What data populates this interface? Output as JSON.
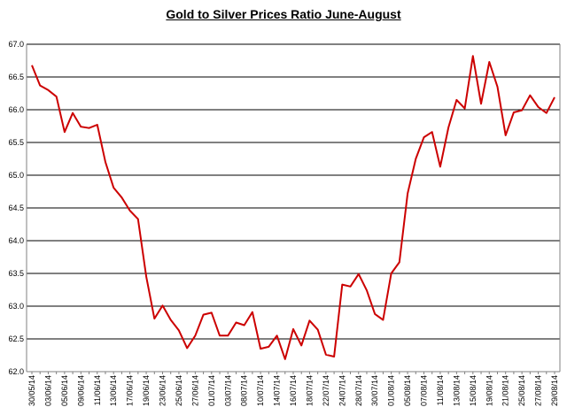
{
  "chart_data": {
    "type": "line",
    "title": "Gold to Silver Prices Ratio June-August",
    "xlabel": "",
    "ylabel": "",
    "ylim": [
      62.0,
      67.0
    ],
    "y_ticks": [
      "62.0",
      "62.5",
      "63.0",
      "63.5",
      "64.0",
      "64.5",
      "65.0",
      "65.5",
      "66.0",
      "66.5",
      "67.0"
    ],
    "grid": true,
    "legend": "none",
    "colors": {
      "line": "#cc0000",
      "grid": "#000000",
      "axis": "#808080"
    },
    "x_tick_labels": [
      "30/05/14",
      "03/06/14",
      "05/06/14",
      "09/06/14",
      "11/06/14",
      "13/06/14",
      "17/06/14",
      "19/06/14",
      "23/06/14",
      "25/06/14",
      "27/06/14",
      "01/07/14",
      "03/07/14",
      "08/07/14",
      "10/07/14",
      "14/07/14",
      "16/07/14",
      "18/07/14",
      "22/07/14",
      "24/07/14",
      "28/07/14",
      "30/07/14",
      "01/08/14",
      "05/08/14",
      "07/08/14",
      "11/08/14",
      "13/08/14",
      "15/08/14",
      "19/08/14",
      "21/08/14",
      "25/08/14",
      "27/08/14",
      "29/08/14"
    ],
    "series": [
      {
        "values": [
          66.68,
          66.37,
          66.3,
          66.2,
          65.66,
          65.95,
          65.74,
          65.72,
          65.77,
          65.2,
          64.81,
          64.66,
          64.46,
          64.33,
          63.45,
          62.81,
          63.01,
          62.79,
          62.63,
          62.36,
          62.55,
          62.87,
          62.9,
          62.55,
          62.55,
          62.75,
          62.71,
          62.91,
          62.35,
          62.38,
          62.55,
          62.19,
          62.65,
          62.4,
          62.78,
          62.64,
          62.26,
          62.23,
          63.33,
          63.3,
          63.49,
          63.24,
          62.88,
          62.79,
          63.5,
          63.67,
          64.72,
          65.25,
          65.58,
          65.66,
          65.13,
          65.73,
          66.15,
          66.02,
          66.82,
          66.09,
          66.73,
          66.35,
          65.61,
          65.96,
          65.99,
          66.22,
          66.04,
          65.95,
          66.19
        ]
      }
    ]
  }
}
